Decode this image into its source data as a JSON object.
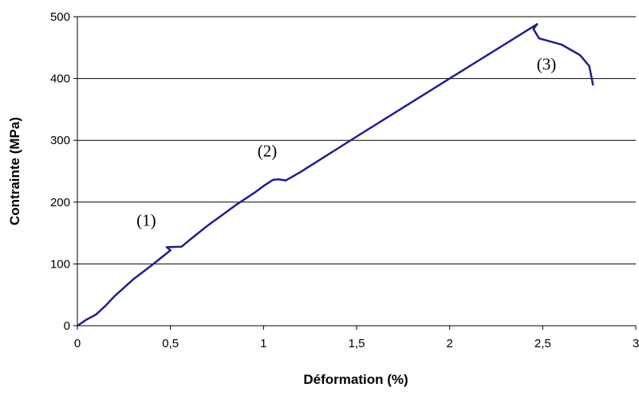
{
  "chart_data": {
    "type": "line",
    "title": "",
    "xlabel": "Déformation (%)",
    "ylabel": "Contrainte (MPa)",
    "xlim": [
      0,
      3
    ],
    "ylim": [
      0,
      500
    ],
    "x_ticks": [
      0,
      0.5,
      1,
      1.5,
      2,
      2.5,
      3
    ],
    "x_tick_labels": [
      "0",
      "0,5",
      "1",
      "1,5",
      "2",
      "2,5",
      "3"
    ],
    "y_ticks": [
      0,
      100,
      200,
      300,
      400,
      500
    ],
    "y_tick_labels": [
      "0",
      "100",
      "200",
      "300",
      "400",
      "500"
    ],
    "grid": "horizontal",
    "legend": "none",
    "series_color": "#1f1f8c",
    "series": [
      {
        "x": [
          0,
          0.05,
          0.1,
          0.15,
          0.2,
          0.3,
          0.4,
          0.45,
          0.5,
          0.48,
          0.56,
          0.6,
          0.7,
          0.8,
          0.85,
          0.9,
          0.95,
          1.0,
          1.05,
          1.08,
          1.12,
          1.2,
          1.5,
          2.0,
          2.47,
          2.45,
          2.48,
          2.6,
          2.7,
          2.75,
          2.77
        ],
        "y": [
          0,
          10,
          18,
          32,
          48,
          75,
          98,
          110,
          122,
          127,
          128,
          138,
          162,
          184,
          195,
          205,
          215,
          226,
          236,
          237,
          235,
          249,
          306,
          400,
          488,
          480,
          465,
          455,
          438,
          420,
          390
        ]
      }
    ],
    "annotations": [
      {
        "text": "(1)",
        "x": 0.37,
        "y": 162
      },
      {
        "text": "(2)",
        "x": 1.02,
        "y": 274
      },
      {
        "text": "(3)",
        "x": 2.52,
        "y": 414
      }
    ]
  }
}
